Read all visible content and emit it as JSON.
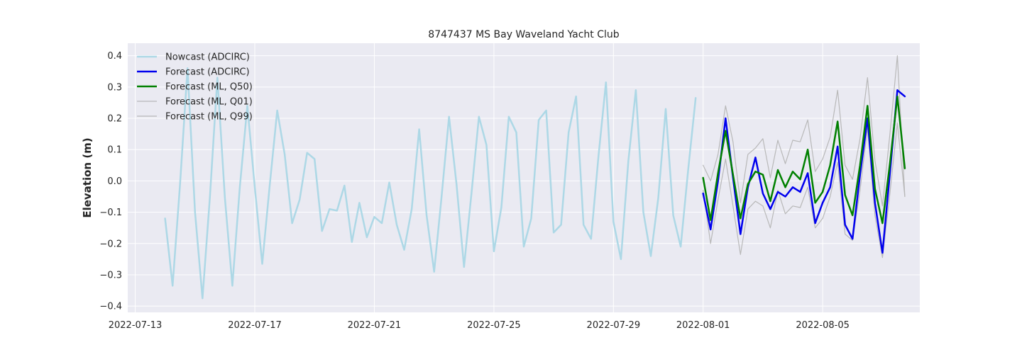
{
  "chart_data": {
    "type": "line",
    "title": "8747437 MS Bay Waveland Yacht Club",
    "xlabel": "",
    "ylabel": "Elevation (m)",
    "xlim": [
      "2022-07-12 18:00",
      "2022-08-08 06:00"
    ],
    "ylim": [
      -0.42,
      0.44
    ],
    "x_ticks": [
      "2022-07-13",
      "2022-07-17",
      "2022-07-21",
      "2022-07-25",
      "2022-07-29",
      "2022-08-01",
      "2022-08-05"
    ],
    "y_ticks": [
      -0.4,
      -0.3,
      -0.2,
      -0.1,
      0.0,
      0.1,
      0.2,
      0.3,
      0.4
    ],
    "y_tick_labels": [
      "−0.4",
      "−0.3",
      "−0.2",
      "−0.1",
      "0.0",
      "0.1",
      "0.2",
      "0.3",
      "0.4"
    ],
    "grid": true,
    "legend_position": "top-left",
    "background_color": "#eaeaf2",
    "series": [
      {
        "name": "Nowcast (ADCIRC)",
        "color": "#add8e6",
        "x": [
          "2022-07-14 00:00",
          "2022-07-14 06:00",
          "2022-07-14 12:00",
          "2022-07-14 18:00",
          "2022-07-15 00:00",
          "2022-07-15 06:00",
          "2022-07-15 12:00",
          "2022-07-15 18:00",
          "2022-07-16 00:00",
          "2022-07-16 06:00",
          "2022-07-16 12:00",
          "2022-07-16 18:00",
          "2022-07-17 00:00",
          "2022-07-17 06:00",
          "2022-07-17 12:00",
          "2022-07-17 18:00",
          "2022-07-18 00:00",
          "2022-07-18 06:00",
          "2022-07-18 12:00",
          "2022-07-18 18:00",
          "2022-07-19 00:00",
          "2022-07-19 06:00",
          "2022-07-19 12:00",
          "2022-07-19 18:00",
          "2022-07-20 00:00",
          "2022-07-20 06:00",
          "2022-07-20 12:00",
          "2022-07-20 18:00",
          "2022-07-21 00:00",
          "2022-07-21 06:00",
          "2022-07-21 12:00",
          "2022-07-21 18:00",
          "2022-07-22 00:00",
          "2022-07-22 06:00",
          "2022-07-22 12:00",
          "2022-07-22 18:00",
          "2022-07-23 00:00",
          "2022-07-23 06:00",
          "2022-07-23 12:00",
          "2022-07-23 18:00",
          "2022-07-24 00:00",
          "2022-07-24 06:00",
          "2022-07-24 12:00",
          "2022-07-24 18:00",
          "2022-07-25 00:00",
          "2022-07-25 06:00",
          "2022-07-25 12:00",
          "2022-07-25 18:00",
          "2022-07-26 00:00",
          "2022-07-26 06:00",
          "2022-07-26 12:00",
          "2022-07-26 18:00",
          "2022-07-27 00:00",
          "2022-07-27 06:00",
          "2022-07-27 12:00",
          "2022-07-27 18:00",
          "2022-07-28 00:00",
          "2022-07-28 06:00",
          "2022-07-28 12:00",
          "2022-07-28 18:00",
          "2022-07-29 00:00",
          "2022-07-29 06:00",
          "2022-07-29 12:00",
          "2022-07-29 18:00",
          "2022-07-30 00:00",
          "2022-07-30 06:00",
          "2022-07-30 12:00",
          "2022-07-30 18:00",
          "2022-07-31 00:00",
          "2022-07-31 06:00",
          "2022-07-31 12:00",
          "2022-07-31 18:00"
        ],
        "values": [
          -0.12,
          -0.335,
          -0.01,
          0.36,
          -0.1,
          -0.375,
          -0.05,
          0.33,
          -0.055,
          -0.335,
          -0.02,
          0.24,
          -0.02,
          -0.265,
          -0.015,
          0.225,
          0.085,
          -0.135,
          -0.06,
          0.09,
          0.07,
          -0.16,
          -0.09,
          -0.095,
          -0.015,
          -0.195,
          -0.07,
          -0.18,
          -0.115,
          -0.135,
          -0.005,
          -0.14,
          -0.22,
          -0.09,
          0.165,
          -0.11,
          -0.29,
          -0.05,
          0.205,
          -0.01,
          -0.275,
          -0.04,
          0.205,
          0.115,
          -0.225,
          -0.085,
          0.205,
          0.155,
          -0.21,
          -0.12,
          0.195,
          0.225,
          -0.165,
          -0.14,
          0.155,
          0.27,
          -0.14,
          -0.185,
          0.08,
          0.315,
          -0.13,
          -0.25,
          0.065,
          0.29,
          -0.1,
          -0.24,
          -0.055,
          0.23,
          -0.11,
          -0.21,
          0.035,
          0.265
        ]
      },
      {
        "name": "Forecast (ADCIRC)",
        "color": "#0000ee",
        "x": [
          "2022-08-01 00:00",
          "2022-08-01 06:00",
          "2022-08-01 12:00",
          "2022-08-01 18:00",
          "2022-08-02 00:00",
          "2022-08-02 06:00",
          "2022-08-02 12:00",
          "2022-08-02 18:00",
          "2022-08-03 00:00",
          "2022-08-03 06:00",
          "2022-08-03 12:00",
          "2022-08-03 18:00",
          "2022-08-04 00:00",
          "2022-08-04 06:00",
          "2022-08-04 12:00",
          "2022-08-04 18:00",
          "2022-08-05 00:00",
          "2022-08-05 06:00",
          "2022-08-05 12:00",
          "2022-08-05 18:00",
          "2022-08-06 00:00",
          "2022-08-06 06:00",
          "2022-08-06 12:00",
          "2022-08-06 18:00",
          "2022-08-07 00:00",
          "2022-08-07 06:00",
          "2022-08-07 12:00",
          "2022-08-07 18:00"
        ],
        "values": [
          -0.04,
          -0.155,
          0.0,
          0.2,
          0.01,
          -0.17,
          -0.02,
          0.075,
          -0.04,
          -0.09,
          -0.035,
          -0.05,
          -0.02,
          -0.035,
          0.025,
          -0.135,
          -0.07,
          -0.02,
          0.11,
          -0.14,
          -0.185,
          0.02,
          0.2,
          -0.07,
          -0.23,
          0.025,
          0.29,
          0.27
        ]
      },
      {
        "name": "Forecast (ML, Q50)",
        "color": "#008000",
        "x": [
          "2022-08-01 00:00",
          "2022-08-01 06:00",
          "2022-08-01 12:00",
          "2022-08-01 18:00",
          "2022-08-02 00:00",
          "2022-08-02 06:00",
          "2022-08-02 12:00",
          "2022-08-02 18:00",
          "2022-08-03 00:00",
          "2022-08-03 06:00",
          "2022-08-03 12:00",
          "2022-08-03 18:00",
          "2022-08-04 00:00",
          "2022-08-04 06:00",
          "2022-08-04 12:00",
          "2022-08-04 18:00",
          "2022-08-05 00:00",
          "2022-08-05 06:00",
          "2022-08-05 12:00",
          "2022-08-05 18:00",
          "2022-08-06 00:00",
          "2022-08-06 06:00",
          "2022-08-06 12:00",
          "2022-08-06 18:00",
          "2022-08-07 00:00",
          "2022-08-07 06:00",
          "2022-08-07 12:00",
          "2022-08-07 18:00"
        ],
        "values": [
          0.01,
          -0.125,
          0.025,
          0.16,
          0.02,
          -0.12,
          -0.01,
          0.03,
          0.02,
          -0.065,
          0.035,
          -0.02,
          0.03,
          0.005,
          0.1,
          -0.07,
          -0.035,
          0.05,
          0.19,
          -0.045,
          -0.11,
          0.05,
          0.24,
          -0.025,
          -0.135,
          0.055,
          0.27,
          0.04
        ]
      },
      {
        "name": "Forecast (ML, Q01)",
        "color": "#b8b8b8",
        "x": [
          "2022-08-01 00:00",
          "2022-08-01 06:00",
          "2022-08-01 12:00",
          "2022-08-01 18:00",
          "2022-08-02 00:00",
          "2022-08-02 06:00",
          "2022-08-02 12:00",
          "2022-08-02 18:00",
          "2022-08-03 00:00",
          "2022-08-03 06:00",
          "2022-08-03 12:00",
          "2022-08-03 18:00",
          "2022-08-04 00:00",
          "2022-08-04 06:00",
          "2022-08-04 12:00",
          "2022-08-04 18:00",
          "2022-08-05 00:00",
          "2022-08-05 06:00",
          "2022-08-05 12:00",
          "2022-08-05 18:00",
          "2022-08-06 00:00",
          "2022-08-06 06:00",
          "2022-08-06 12:00",
          "2022-08-06 18:00",
          "2022-08-07 00:00",
          "2022-08-07 06:00",
          "2022-08-07 12:00",
          "2022-08-07 18:00"
        ],
        "values": [
          -0.03,
          -0.2,
          -0.06,
          0.07,
          -0.08,
          -0.235,
          -0.09,
          -0.065,
          -0.08,
          -0.15,
          -0.03,
          -0.105,
          -0.08,
          -0.085,
          -0.02,
          -0.15,
          -0.12,
          -0.05,
          0.06,
          -0.17,
          -0.19,
          -0.03,
          0.17,
          -0.11,
          -0.245,
          -0.04,
          0.185,
          -0.05
        ]
      },
      {
        "name": "Forecast (ML, Q99)",
        "color": "#b8b8b8",
        "x": [
          "2022-08-01 00:00",
          "2022-08-01 06:00",
          "2022-08-01 12:00",
          "2022-08-01 18:00",
          "2022-08-02 00:00",
          "2022-08-02 06:00",
          "2022-08-02 12:00",
          "2022-08-02 18:00",
          "2022-08-03 00:00",
          "2022-08-03 06:00",
          "2022-08-03 12:00",
          "2022-08-03 18:00",
          "2022-08-04 00:00",
          "2022-08-04 06:00",
          "2022-08-04 12:00",
          "2022-08-04 18:00",
          "2022-08-05 00:00",
          "2022-08-05 06:00",
          "2022-08-05 12:00",
          "2022-08-05 18:00",
          "2022-08-06 00:00",
          "2022-08-06 06:00",
          "2022-08-06 12:00",
          "2022-08-06 18:00",
          "2022-08-07 00:00",
          "2022-08-07 06:00",
          "2022-08-07 12:00",
          "2022-08-07 18:00"
        ],
        "values": [
          0.05,
          0.0,
          0.085,
          0.24,
          0.125,
          -0.07,
          0.085,
          0.105,
          0.135,
          0.01,
          0.13,
          0.055,
          0.13,
          0.125,
          0.195,
          0.03,
          0.07,
          0.14,
          0.29,
          0.05,
          0.005,
          0.135,
          0.33,
          0.065,
          -0.08,
          0.15,
          0.4,
          -0.05
        ]
      }
    ]
  }
}
